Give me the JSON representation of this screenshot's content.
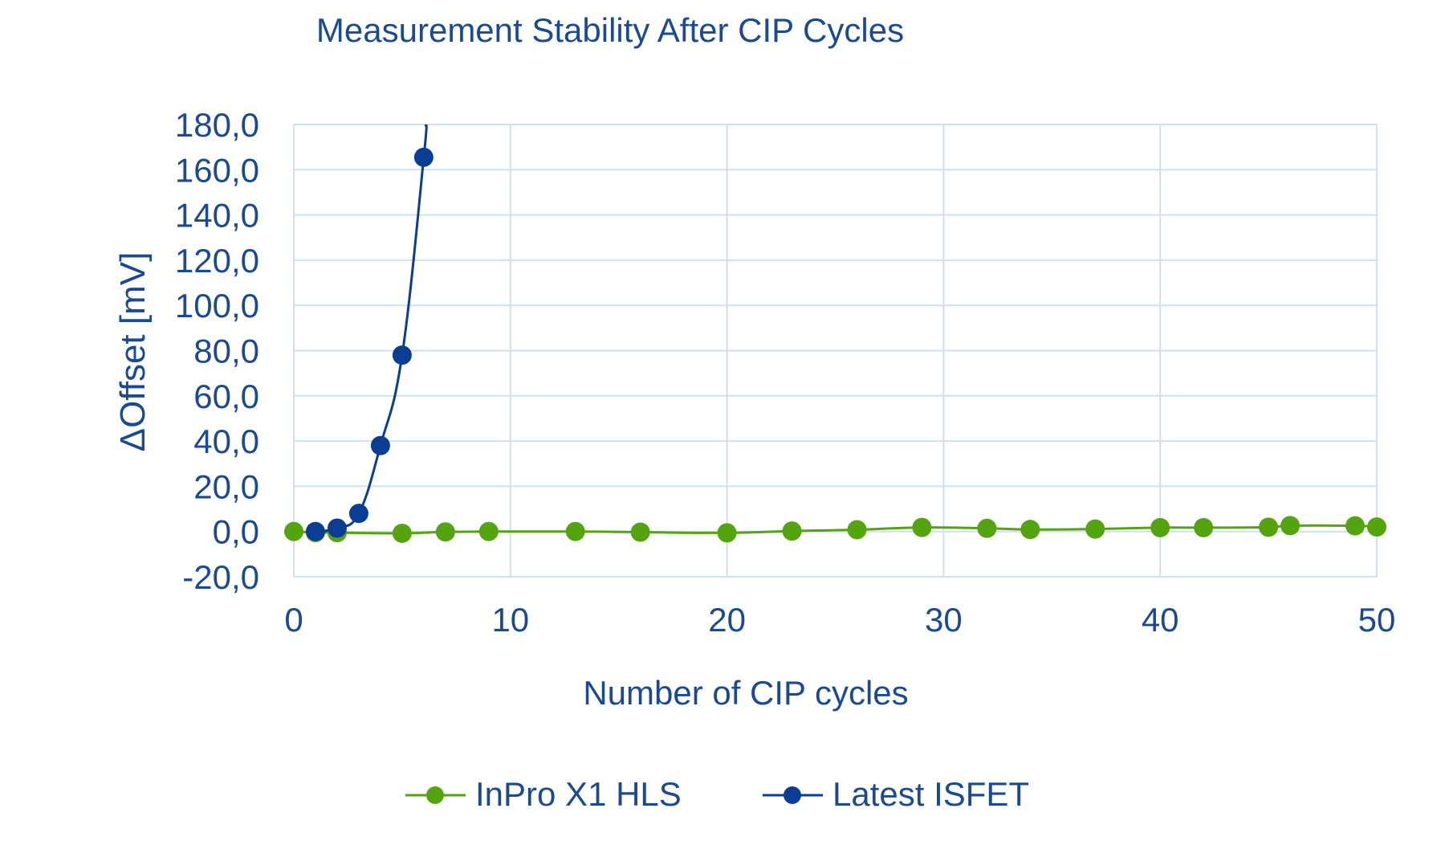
{
  "chart_data": {
    "type": "line",
    "title": "Measurement Stability After CIP Cycles",
    "xlabel": "Number of CIP cycles",
    "ylabel": "ΔOffset [mV]",
    "xlim": [
      0,
      50
    ],
    "ylim": [
      -20,
      180
    ],
    "xticks": [
      0,
      10,
      20,
      30,
      40,
      50
    ],
    "yticks": [
      -20,
      0,
      20,
      40,
      60,
      80,
      100,
      120,
      140,
      160,
      180
    ],
    "ytick_labels": [
      "-20,0",
      "0,0",
      "20,0",
      "40,0",
      "60,0",
      "80,0",
      "100,0",
      "120,0",
      "140,0",
      "160,0",
      "180,0"
    ],
    "grid": true,
    "smooth": true,
    "legend_position": "bottom",
    "colors": {
      "text": "#1a4a94",
      "grid": "#cfe0f3",
      "axis": "#b9d0ea"
    },
    "series": [
      {
        "name": "InPro X1 HLS",
        "color": "#54a40f",
        "x": [
          0,
          1,
          2,
          5,
          7,
          9,
          13,
          16,
          20,
          23,
          26,
          29,
          32,
          34,
          37,
          40,
          42,
          45,
          46,
          49,
          50
        ],
        "y": [
          0.0,
          -0.5,
          -0.5,
          -0.8,
          -0.2,
          0.0,
          0.0,
          -0.3,
          -0.6,
          0.2,
          0.8,
          1.8,
          1.4,
          0.9,
          1.1,
          1.7,
          1.7,
          1.9,
          2.6,
          2.5,
          2.0
        ]
      },
      {
        "name": "Latest ISFET",
        "color": "#0a3d94",
        "x": [
          1,
          2,
          3,
          4,
          5,
          6
        ],
        "y": [
          0.0,
          1.5,
          8.0,
          38.0,
          78.0,
          165.5
        ],
        "extends_beyond": {
          "x": 6.1,
          "y": 180
        }
      }
    ]
  }
}
